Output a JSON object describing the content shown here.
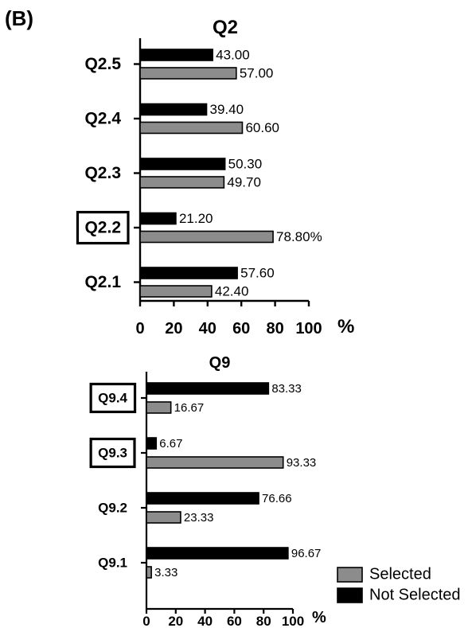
{
  "panel_label": "(B)",
  "legend": {
    "entries": [
      {
        "label": "Selected",
        "color": "#8c8c8c"
      },
      {
        "label": "Not Selected",
        "color": "#000000"
      }
    ],
    "placement": "bottom-right"
  },
  "chart_data": [
    {
      "type": "bar",
      "orientation": "horizontal",
      "title": "Q2",
      "categories": [
        "Q2.5",
        "Q2.4",
        "Q2.3",
        "Q2.2",
        "Q2.1"
      ],
      "highlighted_categories": [
        "Q2.2"
      ],
      "series": [
        {
          "name": "Not Selected",
          "color": "#000000",
          "values": [
            43.0,
            39.4,
            50.3,
            21.2,
            57.6
          ],
          "labels": [
            "43.00",
            "39.40",
            "50.30",
            "21.20",
            "57.60"
          ]
        },
        {
          "name": "Selected",
          "color": "#8c8c8c",
          "values": [
            57.0,
            60.6,
            49.7,
            78.8,
            42.4
          ],
          "labels": [
            "57.00",
            "60.60",
            "49.70",
            "78.80%",
            "42.40"
          ]
        }
      ],
      "xlim": [
        0,
        100
      ],
      "xticks": [
        "0",
        "20",
        "40",
        "60",
        "80",
        "100"
      ],
      "xlabel": "%",
      "grid": false
    },
    {
      "type": "bar",
      "orientation": "horizontal",
      "title": "Q9",
      "categories": [
        "Q9.4",
        "Q9.3",
        "Q9.2",
        "Q9.1"
      ],
      "highlighted_categories": [
        "Q9.4",
        "Q9.3"
      ],
      "series": [
        {
          "name": "Not Selected",
          "color": "#000000",
          "values": [
            83.33,
            6.67,
            76.66,
            96.67
          ],
          "labels": [
            "83.33",
            "6.67",
            "76.66",
            "96.67"
          ]
        },
        {
          "name": "Selected",
          "color": "#8c8c8c",
          "values": [
            16.67,
            93.33,
            23.33,
            3.33
          ],
          "labels": [
            "16.67",
            "93.33",
            "23.33",
            "3.33"
          ]
        }
      ],
      "xlim": [
        0,
        100
      ],
      "xticks": [
        "0",
        "20",
        "40",
        "60",
        "80",
        "100"
      ],
      "xlabel": "%",
      "grid": false
    }
  ]
}
